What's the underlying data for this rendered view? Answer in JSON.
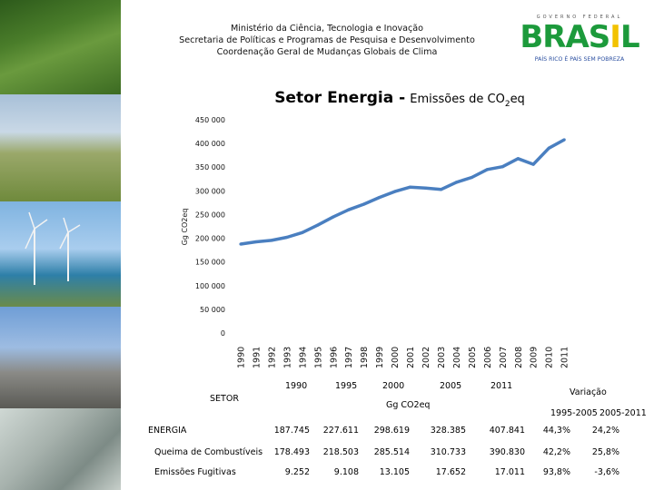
{
  "header": {
    "line1": "Ministério da Ciência, Tecnologia e Inovação",
    "line2": "Secretaria de Políticas e Programas de Pesquisa e Desenvolvimento",
    "line3": "Coordenação Geral de Mudanças Globais de Clima"
  },
  "logo": {
    "top_text": "GOVERNO FEDERAL",
    "word": "BRASIL",
    "subtitle": "PAÍS RICO É PAÍS SEM POBREZA"
  },
  "title_main": "Setor Energia -",
  "title_emissoes": "Emissões de CO",
  "title_sub2": "2",
  "title_eq": "eq",
  "chart_data": {
    "type": "line",
    "ylabel": "Gg CO2eq",
    "x": [
      "1990",
      "1991",
      "1992",
      "1993",
      "1994",
      "1995",
      "1996",
      "1997",
      "1998",
      "1999",
      "2000",
      "2001",
      "2002",
      "2003",
      "2004",
      "2005",
      "2006",
      "2007",
      "2008",
      "2009",
      "2010",
      "2011"
    ],
    "series": [
      {
        "values": [
          187745,
          192500,
          195500,
          202000,
          212000,
          227611,
          245000,
          260000,
          272000,
          286000,
          298619,
          308000,
          306000,
          303000,
          318000,
          328385,
          345000,
          351000,
          368000,
          356000,
          390000,
          407841
        ]
      }
    ],
    "ylim": [
      0,
      450000
    ],
    "yticks": [
      0,
      50000,
      100000,
      150000,
      200000,
      250000,
      300000,
      350000,
      400000,
      450000
    ],
    "ytick_labels": [
      "0",
      "50 000",
      "100 000",
      "150 000",
      "200 000",
      "250 000",
      "300 000",
      "350 000",
      "400 000",
      "450 000"
    ],
    "grid": false,
    "line_color": "#4a7fc0"
  },
  "table": {
    "setor_label": "SETOR",
    "years": [
      "1990",
      "1995",
      "2000",
      "2005",
      "2011"
    ],
    "unit": "Gg CO2eq",
    "variacao_label": "Variação",
    "var_periods": [
      "1995-2005",
      "2005-2011"
    ],
    "rows": [
      {
        "name": "ENERGIA",
        "values": [
          "187.745",
          "227.611",
          "298.619",
          "328.385",
          "407.841"
        ],
        "var": [
          "44,3%",
          "24,2%"
        ]
      },
      {
        "name": "Queima de Combustíveis",
        "values": [
          "178.493",
          "218.503",
          "285.514",
          "310.733",
          "390.830"
        ],
        "var": [
          "42,2%",
          "25,8%"
        ]
      },
      {
        "name": "Emissões Fugitivas",
        "values": [
          "9.252",
          "9.108",
          "13.105",
          "17.652",
          "17.011"
        ],
        "var": [
          "93,8%",
          "-3,6%"
        ]
      }
    ]
  }
}
